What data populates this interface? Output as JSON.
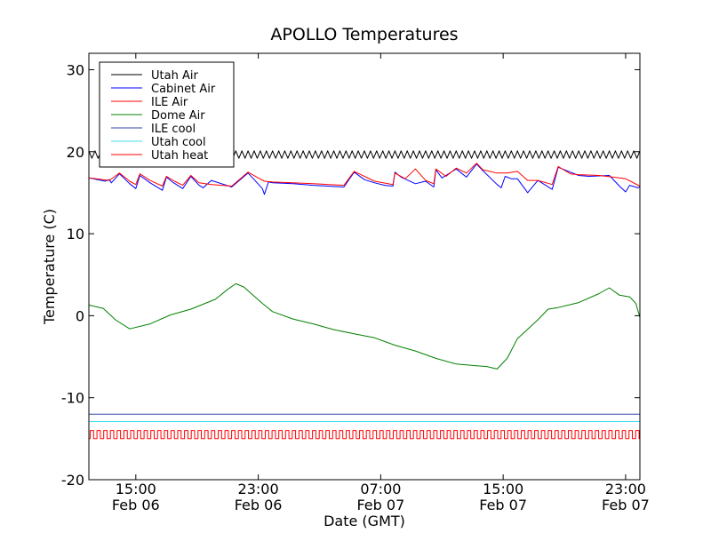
{
  "chart_data": {
    "type": "line",
    "title": "APOLLO Temperatures",
    "xlabel": "Date (GMT)",
    "ylabel": "Temperature (C)",
    "ylim": [
      -20,
      32
    ],
    "yticks": [
      -20,
      -10,
      0,
      10,
      20,
      30
    ],
    "ytick_labels": [
      "-20",
      "-10",
      "0",
      "10",
      "20",
      "30"
    ],
    "xlim_hours": [
      0,
      27
    ],
    "xticks": [
      {
        "hour": 2.3,
        "time": "15:00",
        "date": "Feb 06"
      },
      {
        "hour": 8.3,
        "time": "23:00",
        "date": "Feb 06"
      },
      {
        "hour": 14.3,
        "time": "07:00",
        "date": "Feb 07"
      },
      {
        "hour": 20.3,
        "time": "15:00",
        "date": "Feb 07"
      },
      {
        "hour": 26.3,
        "time": "23:00",
        "date": "Feb 07"
      }
    ],
    "legend_position": "top-left",
    "series": [
      {
        "name": "Utah Air",
        "color": "#000000",
        "kind": "sawtooth",
        "low": 19.2,
        "high": 20.1,
        "period_hours": 0.3
      },
      {
        "name": "Cabinet Air",
        "color": "#0000ff",
        "kind": "points",
        "x": [
          0,
          0.8,
          1.0,
          1.1,
          1.5,
          2.0,
          2.3,
          2.5,
          3.0,
          3.6,
          3.8,
          4.1,
          4.6,
          5.0,
          5.4,
          5.6,
          6.0,
          7.0,
          7.8,
          8.1,
          8.5,
          8.6,
          8.8,
          9.0,
          10.0,
          11.0,
          12.5,
          13.0,
          13.5,
          14.0,
          14.5,
          14.9,
          15.0,
          15.3,
          16.0,
          16.5,
          16.9,
          17.0,
          17.3,
          18.0,
          18.5,
          19.0,
          19.3,
          20.0,
          20.2,
          20.4,
          20.7,
          21.0,
          21.5,
          22.0,
          22.7,
          23.0,
          23.6,
          24.0,
          24.5,
          25.5,
          26.0,
          26.3,
          26.5,
          26.9,
          27.0
        ],
        "y": [
          16.8,
          16.4,
          16.6,
          16.2,
          17.3,
          16.1,
          15.5,
          17.1,
          16.2,
          15.3,
          16.9,
          16.3,
          15.5,
          17.0,
          15.9,
          15.6,
          16.5,
          15.7,
          17.4,
          16.6,
          15.5,
          14.8,
          16.3,
          16.2,
          16.1,
          15.9,
          15.7,
          17.5,
          16.6,
          16.2,
          15.9,
          15.8,
          17.5,
          16.9,
          16.1,
          16.4,
          15.7,
          17.8,
          16.8,
          17.9,
          16.9,
          18.5,
          17.7,
          16.0,
          15.6,
          17.0,
          16.7,
          16.7,
          15.0,
          16.5,
          15.4,
          18.1,
          17.5,
          17.1,
          17.0,
          17.1,
          15.8,
          15.1,
          15.9,
          15.6,
          15.7
        ]
      },
      {
        "name": "ILE Air",
        "color": "#ff0000",
        "kind": "points",
        "x": [
          0,
          1.0,
          1.5,
          2.0,
          2.3,
          2.5,
          3.0,
          3.6,
          3.8,
          4.2,
          4.6,
          5.0,
          5.4,
          6.0,
          7.0,
          7.8,
          8.3,
          8.6,
          9.0,
          10.0,
          11.0,
          12.5,
          13.0,
          14.0,
          14.9,
          15.0,
          15.5,
          16.0,
          16.5,
          16.9,
          17.0,
          17.5,
          18.0,
          18.5,
          19.0,
          19.3,
          20.0,
          20.5,
          21.0,
          21.5,
          22.0,
          22.7,
          23.0,
          23.6,
          24.0,
          25.0,
          26.0,
          26.3,
          27.0
        ],
        "y": [
          16.8,
          16.5,
          17.4,
          16.4,
          16.0,
          17.3,
          16.5,
          15.8,
          17.0,
          16.4,
          15.9,
          17.1,
          16.2,
          16.0,
          15.8,
          17.5,
          16.8,
          16.4,
          16.3,
          16.2,
          16.1,
          15.9,
          17.6,
          16.4,
          16.0,
          17.4,
          16.7,
          17.9,
          16.5,
          16.1,
          17.9,
          17.0,
          18.0,
          17.4,
          18.6,
          17.8,
          17.4,
          17.4,
          17.6,
          16.5,
          16.5,
          16.0,
          18.2,
          17.3,
          17.2,
          17.1,
          16.8,
          16.7,
          15.8
        ]
      },
      {
        "name": "Dome Air",
        "color": "#008000",
        "kind": "points",
        "x": [
          0,
          0.7,
          1.3,
          2.0,
          3.0,
          4.0,
          5.0,
          6.2,
          6.8,
          7.2,
          7.6,
          8.0,
          8.5,
          9.0,
          10.0,
          11.0,
          12.0,
          13.0,
          14.0,
          15.0,
          16.0,
          17.0,
          18.0,
          19.0,
          19.5,
          20.0,
          20.5,
          21.0,
          22.0,
          22.5,
          23.0,
          24.0,
          25.0,
          25.5,
          26.0,
          26.5,
          26.8,
          27.0
        ],
        "y": [
          1.3,
          0.9,
          -0.5,
          -1.6,
          -1.0,
          0.1,
          0.8,
          2.0,
          3.2,
          3.9,
          3.5,
          2.6,
          1.5,
          0.5,
          -0.4,
          -1.0,
          -1.7,
          -2.2,
          -2.7,
          -3.6,
          -4.3,
          -5.2,
          -5.9,
          -6.1,
          -6.2,
          -6.5,
          -5.2,
          -2.8,
          -0.5,
          0.8,
          1.0,
          1.6,
          2.7,
          3.4,
          2.5,
          2.3,
          1.5,
          -0.2
        ]
      },
      {
        "name": "ILE cool",
        "color": "#3344aa",
        "kind": "flat",
        "value": -12.0
      },
      {
        "name": "Utah cool",
        "color": "#44ddee",
        "kind": "flat",
        "value": -12.9
      },
      {
        "name": "Utah heat",
        "color": "#ff0000",
        "kind": "square",
        "low": -15.0,
        "high": -14.0,
        "period_hours": 0.33
      }
    ]
  }
}
